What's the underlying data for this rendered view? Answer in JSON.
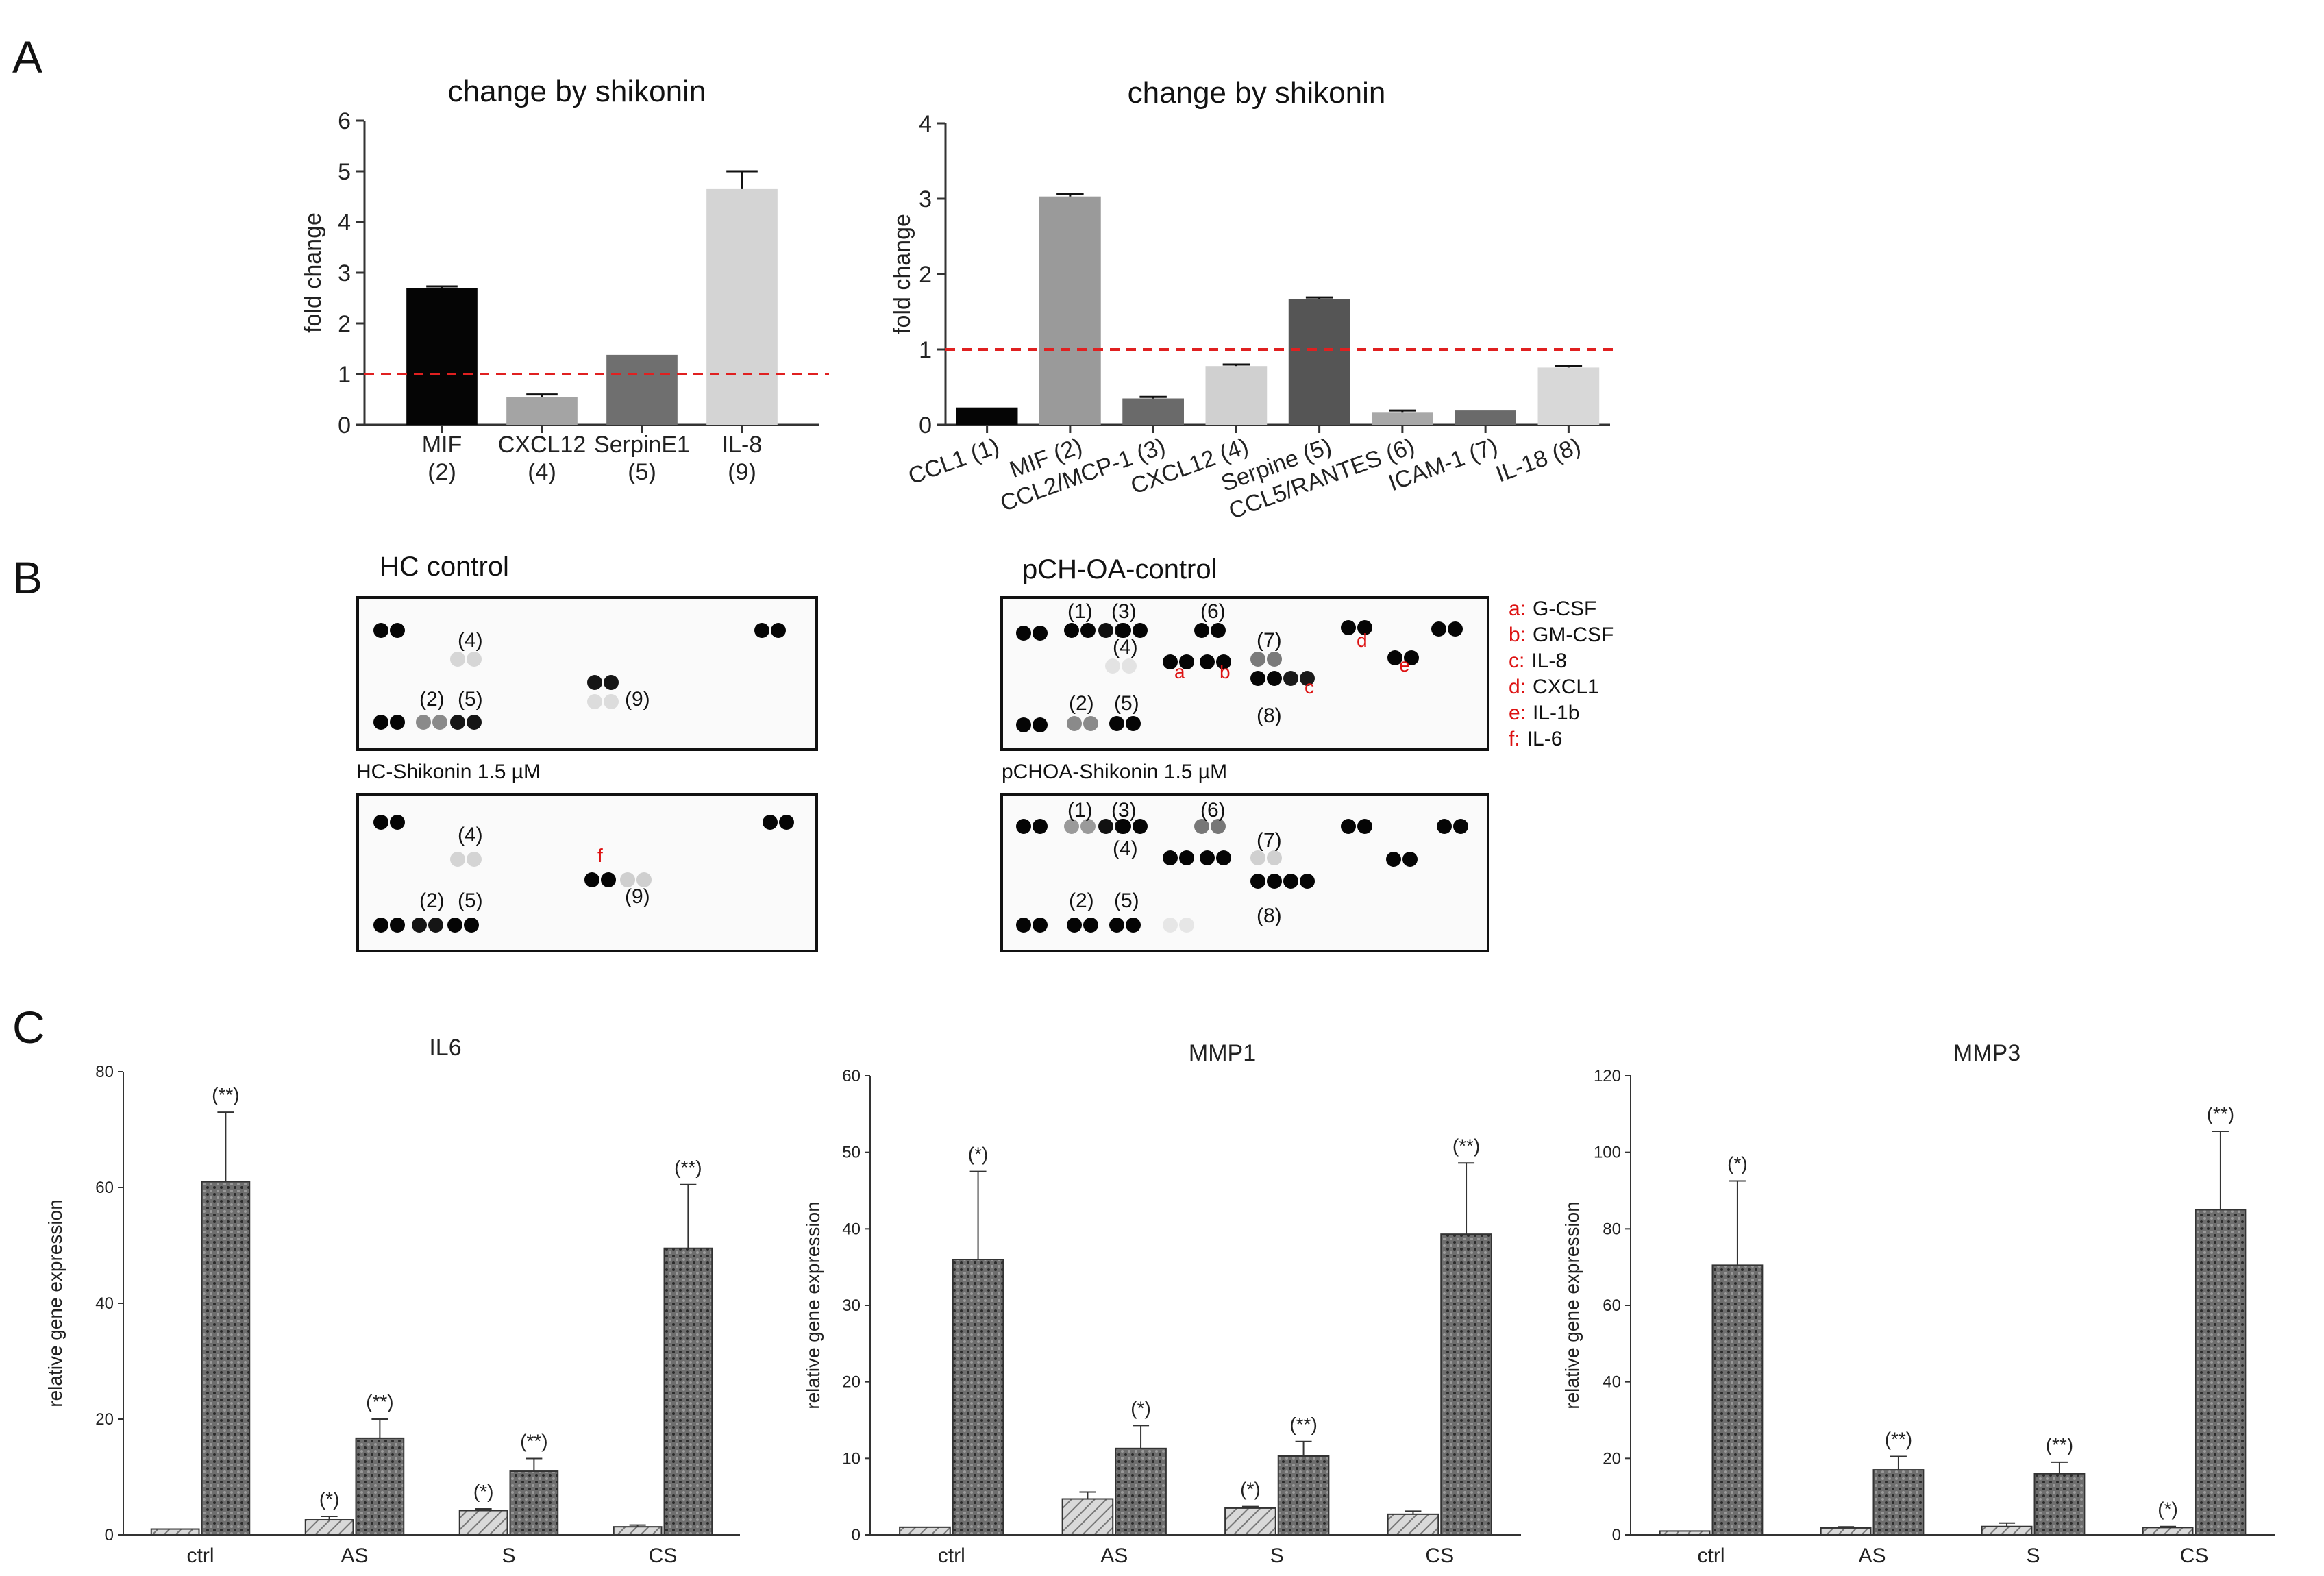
{
  "figure": {
    "panel_a_letter": "A",
    "panel_b_letter": "B",
    "panel_c_letter": "C"
  },
  "chart_data": [
    {
      "type": "bar",
      "title": "change by shikonin",
      "ylabel": "fold change",
      "xlabel": "",
      "ylim": [
        0,
        6
      ],
      "yticks": [
        0,
        1,
        2,
        3,
        4,
        5,
        6
      ],
      "categories": [
        "MIF",
        "CXCL12",
        "SerpinE1",
        "IL-8"
      ],
      "category_sub": [
        "(2)",
        "(4)",
        "(5)",
        "(9)"
      ],
      "values": [
        2.7,
        0.55,
        1.38,
        4.65
      ],
      "errors": [
        0.03,
        0.05,
        0.0,
        0.35
      ],
      "colors": [
        "#050505",
        "#a4a4a4",
        "#6f6f6f",
        "#d4d4d4"
      ],
      "reference_line": 1,
      "reference_color": "#e02020"
    },
    {
      "type": "bar",
      "title": "change by shikonin",
      "ylabel": "fold change",
      "xlabel": "",
      "ylim": [
        0,
        4
      ],
      "yticks": [
        0,
        1,
        2,
        3,
        4
      ],
      "categories": [
        "CCL1 (1)",
        "MIF (2)",
        "CCL2/MCP-1 (3)",
        "CXCL12 (4)",
        "Serpine (5)",
        "CCL5/RANTES (6)",
        "ICAM-1 (7)",
        "IL-18 (8)"
      ],
      "values": [
        0.23,
        3.03,
        0.35,
        0.78,
        1.67,
        0.17,
        0.19,
        0.76
      ],
      "errors": [
        0.0,
        0.03,
        0.02,
        0.02,
        0.02,
        0.02,
        0.0,
        0.02
      ],
      "colors": [
        "#050505",
        "#9a9a9a",
        "#6a6a6a",
        "#d0d0d0",
        "#555555",
        "#a8a8a8",
        "#6a6a6a",
        "#d8d8d8"
      ],
      "reference_line": 1,
      "reference_color": "#e02020"
    },
    {
      "type": "bar",
      "title": "IL6",
      "ylabel": "relative gene expression",
      "ylim": [
        0,
        80
      ],
      "yticks": [
        0,
        20,
        40,
        60,
        80
      ],
      "categories": [
        "ctrl",
        "AS",
        "S",
        "CS"
      ],
      "series": [
        {
          "name": "hatched",
          "values": [
            1,
            2.6,
            4.2,
            1.4
          ],
          "errors": [
            0,
            0.6,
            0.3,
            0.3
          ],
          "sig": [
            "",
            "(*)",
            "(*)",
            ""
          ]
        },
        {
          "name": "dotted",
          "values": [
            61,
            16.7,
            11,
            49.5
          ],
          "errors": [
            12,
            3.3,
            2.2,
            11
          ],
          "sig": [
            "(**)",
            "(**)",
            "(**)",
            "(**)"
          ]
        }
      ]
    },
    {
      "type": "bar",
      "title": "MMP1",
      "ylabel": "relative gene expression",
      "ylim": [
        0,
        60
      ],
      "yticks": [
        0,
        10,
        20,
        30,
        40,
        50,
        60
      ],
      "categories": [
        "ctrl",
        "AS",
        "S",
        "CS"
      ],
      "series": [
        {
          "name": "hatched",
          "values": [
            1,
            4.7,
            3.5,
            2.7
          ],
          "errors": [
            0,
            0.9,
            0.2,
            0.4
          ],
          "sig": [
            "",
            "",
            "(*)",
            ""
          ]
        },
        {
          "name": "dotted",
          "values": [
            36,
            11.3,
            10.3,
            39.3
          ],
          "errors": [
            11.5,
            3,
            1.9,
            9.3
          ],
          "sig": [
            "(*)",
            "(*)",
            "(**)",
            "(**)"
          ]
        }
      ]
    },
    {
      "type": "bar",
      "title": "MMP3",
      "ylabel": "relative gene expression",
      "ylim": [
        0,
        120
      ],
      "yticks": [
        0,
        20,
        40,
        60,
        80,
        100,
        120
      ],
      "categories": [
        "ctrl",
        "AS",
        "S",
        "CS"
      ],
      "series": [
        {
          "name": "hatched",
          "values": [
            1,
            1.8,
            2.2,
            1.9
          ],
          "errors": [
            0,
            0.3,
            0.9,
            0.3
          ],
          "sig": [
            "",
            "",
            "",
            "(*)"
          ]
        },
        {
          "name": "dotted",
          "values": [
            70.5,
            17,
            16,
            85
          ],
          "errors": [
            22,
            3.5,
            3,
            20.5
          ],
          "sig": [
            "(*)",
            "(**)",
            "(**)",
            "(**)"
          ]
        }
      ]
    }
  ],
  "blots": {
    "hc_control_title": "HC control",
    "hc_shikonin_title": "HC-Shikonin 1.5 µM",
    "pch_control_title": "pCH-OA-control",
    "pch_shikonin_title": "pCHOA-Shikonin 1.5 µM",
    "hc_control_labels": [
      "(4)",
      "(2)",
      "(5)",
      "(9)"
    ],
    "hc_shikonin_labels": [
      "(4)",
      "(2)",
      "(5)",
      "(9)"
    ],
    "hc_shikonin_red_label": "f",
    "pch_control_labels": [
      "(1)",
      "(3)",
      "(6)",
      "(4)",
      "(7)",
      "(2)",
      "(5)",
      "(8)"
    ],
    "pch_control_red_labels": [
      "a",
      "b",
      "c",
      "d",
      "e"
    ],
    "pch_shikonin_labels": [
      "(1)",
      "(3)",
      "(6)",
      "(4)",
      "(7)",
      "(2)",
      "(5)",
      "(8)"
    ],
    "legend": [
      {
        "key": "a",
        "sep": ":",
        "name": "G-CSF"
      },
      {
        "key": "b",
        "sep": ":",
        "name": "GM-CSF"
      },
      {
        "key": "c",
        "sep": ":",
        "name": "IL-8"
      },
      {
        "key": "d",
        "sep": ":",
        "name": "CXCL1"
      },
      {
        "key": "e",
        "sep": ":",
        "name": "IL-1b"
      },
      {
        "key": "f",
        "sep": ":",
        "name": "IL-6"
      }
    ]
  }
}
